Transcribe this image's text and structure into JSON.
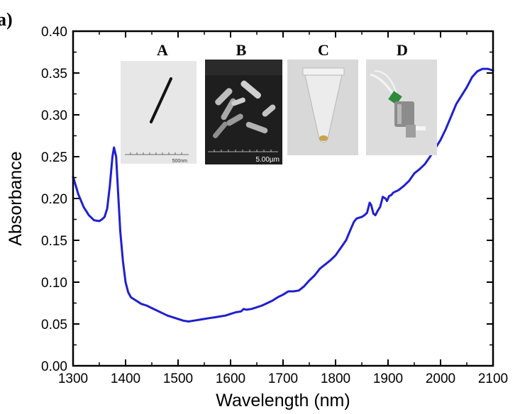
{
  "panel_label": "a)",
  "chart_data": {
    "type": "line",
    "xlabel": "Wavelength (nm)",
    "ylabel": "Absorbance",
    "xlim": [
      1300,
      2100
    ],
    "ylim": [
      0.0,
      0.4
    ],
    "xticks": [
      1300,
      1400,
      1500,
      1600,
      1700,
      1800,
      1900,
      2000,
      2100
    ],
    "yticks": [
      "0.00",
      "0.05",
      "0.10",
      "0.15",
      "0.20",
      "0.25",
      "0.30",
      "0.35",
      "0.40"
    ],
    "grid": false,
    "line_color": "#1f1fd0",
    "series": [
      {
        "x": [
          1300,
          1310,
          1320,
          1330,
          1340,
          1350,
          1355,
          1360,
          1365,
          1370,
          1375,
          1378,
          1382,
          1386,
          1390,
          1395,
          1400,
          1405,
          1410,
          1420,
          1430,
          1440,
          1450,
          1460,
          1470,
          1480,
          1490,
          1500,
          1510,
          1520,
          1530,
          1540,
          1550,
          1560,
          1570,
          1580,
          1590,
          1600,
          1610,
          1620,
          1625,
          1630,
          1640,
          1650,
          1660,
          1670,
          1680,
          1690,
          1700,
          1710,
          1720,
          1730,
          1740,
          1750,
          1760,
          1770,
          1780,
          1790,
          1800,
          1810,
          1820,
          1830,
          1835,
          1840,
          1845,
          1850,
          1855,
          1860,
          1865,
          1868,
          1872,
          1876,
          1880,
          1885,
          1890,
          1895,
          1898,
          1902,
          1906,
          1910,
          1920,
          1930,
          1940,
          1950,
          1960,
          1970,
          1980,
          1990,
          2000,
          2010,
          2020,
          2030,
          2040,
          2050,
          2060,
          2070,
          2080,
          2090,
          2100
        ],
        "y": [
          0.226,
          0.205,
          0.19,
          0.18,
          0.174,
          0.173,
          0.175,
          0.178,
          0.188,
          0.215,
          0.25,
          0.261,
          0.25,
          0.205,
          0.16,
          0.125,
          0.1,
          0.088,
          0.082,
          0.078,
          0.074,
          0.072,
          0.069,
          0.066,
          0.063,
          0.06,
          0.058,
          0.056,
          0.054,
          0.053,
          0.054,
          0.055,
          0.056,
          0.057,
          0.058,
          0.059,
          0.06,
          0.062,
          0.064,
          0.065,
          0.068,
          0.067,
          0.068,
          0.07,
          0.072,
          0.075,
          0.078,
          0.082,
          0.085,
          0.089,
          0.089,
          0.09,
          0.095,
          0.102,
          0.108,
          0.116,
          0.121,
          0.126,
          0.132,
          0.141,
          0.15,
          0.165,
          0.172,
          0.176,
          0.177,
          0.178,
          0.18,
          0.183,
          0.195,
          0.192,
          0.182,
          0.18,
          0.185,
          0.19,
          0.202,
          0.2,
          0.197,
          0.203,
          0.204,
          0.207,
          0.21,
          0.215,
          0.221,
          0.23,
          0.235,
          0.241,
          0.25,
          0.26,
          0.27,
          0.283,
          0.298,
          0.313,
          0.323,
          0.333,
          0.345,
          0.352,
          0.355,
          0.355,
          0.353
        ]
      }
    ]
  },
  "insets": [
    {
      "letter": "A",
      "scale": "500nm"
    },
    {
      "letter": "B",
      "scale": "5.00µm"
    },
    {
      "letter": "C"
    },
    {
      "letter": "D"
    }
  ]
}
